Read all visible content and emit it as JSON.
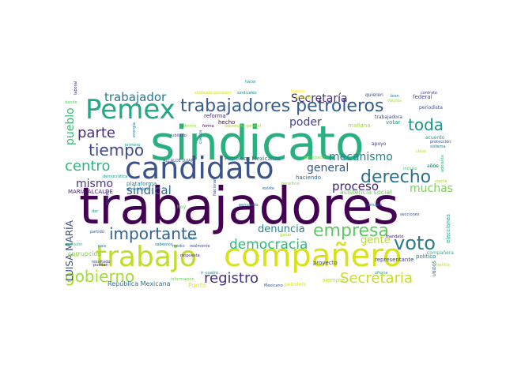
{
  "word_cloud": {
    "words": [
      {
        "text": "trabajadores",
        "color": "#440154"
      },
      {
        "text": "sindicato",
        "color": "#2ab07f"
      },
      {
        "text": "compañero",
        "color": "#d8e219"
      },
      {
        "text": "trabajo",
        "color": "#bddf26"
      },
      {
        "text": "candidato",
        "color": "#3b528b"
      },
      {
        "text": "Pemex",
        "color": "#22a884"
      },
      {
        "text": "trabajadores petroleros",
        "color": "#365c8d"
      },
      {
        "text": "registro",
        "color": "#46327e"
      },
      {
        "text": "empresa",
        "color": "#5ec962"
      },
      {
        "text": "importante",
        "color": "#33638d"
      },
      {
        "text": "derecho",
        "color": "#2c728e"
      },
      {
        "text": "gobierno",
        "color": "#a5db36"
      },
      {
        "text": "voto",
        "color": "#287d8e"
      },
      {
        "text": "Secretaria",
        "color": "#c2df23"
      },
      {
        "text": "democracia",
        "color": "#35b779"
      },
      {
        "text": "toda",
        "color": "#21918c"
      },
      {
        "text": "tiempo",
        "color": "#3e4989"
      },
      {
        "text": "centro",
        "color": "#2fb47c"
      },
      {
        "text": "parte",
        "color": "#472d7b"
      },
      {
        "text": "trabajador",
        "color": "#2a788e"
      },
      {
        "text": "Secretaría",
        "color": "#482878"
      },
      {
        "text": "sindical",
        "color": "#31688e"
      },
      {
        "text": "muchas",
        "color": "#7ad151"
      },
      {
        "text": "proceso",
        "color": "#482173"
      },
      {
        "text": "mecanismo",
        "color": "#26828e"
      },
      {
        "text": "general",
        "color": "#38588c"
      },
      {
        "text": "poder",
        "color": "#414487"
      },
      {
        "text": "pueblo",
        "color": "#3aba76"
      },
      {
        "text": "mismo",
        "color": "#443983"
      },
      {
        "text": "denuncia",
        "color": "#25848e"
      },
      {
        "text": "gente",
        "color": "#b5de2b"
      },
      {
        "text": "LUISA MARÍA",
        "color": "#3b528b"
      },
      {
        "text": "República Mexicana",
        "color": "#2c728e"
      },
      {
        "text": "Punto",
        "color": "#e5e419"
      },
      {
        "text": "asistencia social",
        "color": "#6ccd5a"
      },
      {
        "text": "plataforma",
        "color": "#23898e"
      },
      {
        "text": "MARÍA ALCALDE",
        "color": "#481f70"
      },
      {
        "text": "corrupción",
        "color": "#7fd34e"
      },
      {
        "text": "Petróleos Mexicanos",
        "color": "#2c728e"
      },
      {
        "text": "reforma",
        "color": "#472c7a"
      },
      {
        "text": "mañana",
        "color": "#9bd93c"
      },
      {
        "text": "votar",
        "color": "#1f9e89"
      },
      {
        "text": "federal",
        "color": "#3e4a89"
      },
      {
        "text": "elecciones",
        "color": "#20a386"
      },
      {
        "text": "político",
        "color": "#26818e"
      },
      {
        "text": "representante",
        "color": "#414487"
      },
      {
        "text": "siempre",
        "color": "#b8de29"
      },
      {
        "text": "proyecto",
        "color": "#3e4989"
      },
      {
        "text": "haciendo",
        "color": "#31688e"
      },
      {
        "text": "hecho",
        "color": "#440154"
      },
      {
        "text": "año",
        "color": "#6ece58"
      },
      {
        "text": "años",
        "color": "#2a778e"
      },
      {
        "text": "acuerdo",
        "color": "#20a486"
      },
      {
        "text": "apoyo",
        "color": "#443a83"
      },
      {
        "text": "periodista",
        "color": "#3b528b"
      },
      {
        "text": "compañera",
        "color": "#2ab07f"
      },
      {
        "text": "trabajadora",
        "color": "#3e4989"
      },
      {
        "text": "quieren",
        "color": "#404688"
      },
      {
        "text": "ALCALDE LUJÁN",
        "color": "#38588c"
      },
      {
        "text": "jubilado",
        "color": "#3f4788"
      },
      {
        "text": "sindicato petrolero",
        "color": "#d2e21b"
      },
      {
        "text": "sindicales",
        "color": "#228b8d"
      },
      {
        "text": "Secretario general",
        "color": "#a8db34"
      },
      {
        "text": "forma",
        "color": "#440154"
      },
      {
        "text": "dentro",
        "color": "#95d840"
      },
      {
        "text": "primero",
        "color": "#1fa088"
      },
      {
        "text": "energía",
        "color": "#2a778e"
      },
      {
        "text": "democrática",
        "color": "#1f9a8a"
      },
      {
        "text": "revocación",
        "color": "#2d708e"
      },
      {
        "text": "hoy",
        "color": "#5ec962"
      },
      {
        "text": "Nacional",
        "color": "#3a548c"
      },
      {
        "text": "cuenta",
        "color": "#2d718e"
      },
      {
        "text": "ganar",
        "color": "#a0da39"
      },
      {
        "text": "pensando",
        "color": "#2c738e"
      },
      {
        "text": "ejemplo",
        "color": "#3e4a89"
      },
      {
        "text": "partido",
        "color": "#39568c"
      },
      {
        "text": "resultado",
        "color": "#404588"
      },
      {
        "text": "puedan",
        "color": "#482576"
      },
      {
        "text": "dar",
        "color": "#21908d"
      },
      {
        "text": "medio",
        "color": "#2e6f8e"
      },
      {
        "text": "realmente",
        "color": "#3f4889"
      },
      {
        "text": "ir",
        "color": "#34608d"
      },
      {
        "text": "cuatro",
        "color": "#26828e"
      },
      {
        "text": "información",
        "color": "#6ccd5a"
      },
      {
        "text": "trabaja",
        "color": "#fde725"
      },
      {
        "text": "existe",
        "color": "#2b748e"
      },
      {
        "text": "beneficio",
        "color": "#84d44b"
      },
      {
        "text": "corrupto",
        "color": "#39568c"
      },
      {
        "text": "secciones",
        "color": "#3b528b"
      },
      {
        "text": "mandato",
        "color": "#481a6c"
      },
      {
        "text": "oficina",
        "color": "#1f9e89"
      },
      {
        "text": "familia",
        "color": "#b2dd2d"
      },
      {
        "text": "UNIDOS",
        "color": "#34608d"
      },
      {
        "text": "adelante",
        "color": "#2db27d"
      },
      {
        "text": "incluso",
        "color": "#40bd72"
      },
      {
        "text": "sistema",
        "color": "#2c738e"
      },
      {
        "text": "protección",
        "color": "#3b528b"
      },
      {
        "text": "bien",
        "color": "#287c8e"
      },
      {
        "text": "contrato",
        "color": "#414487"
      },
      {
        "text": "valores",
        "color": "#a8db34"
      },
      {
        "text": "logrado",
        "color": "#c5e021"
      },
      {
        "text": "laboral",
        "color": "#482475"
      },
      {
        "text": "dando",
        "color": "#5ec962"
      },
      {
        "text": "niños",
        "color": "#95d840"
      },
      {
        "text": "país",
        "color": "#2c738e"
      },
      {
        "text": "comisión",
        "color": "#35b779"
      },
      {
        "text": "sabemos",
        "color": "#26818e"
      },
      {
        "text": "respuesta",
        "color": "#482878"
      },
      {
        "text": "Mexicano",
        "color": "#3b528b"
      },
      {
        "text": "petrolero",
        "color": "#d8e219"
      },
      {
        "text": "escuchado",
        "color": "#7ad151"
      },
      {
        "text": "electa",
        "color": "#a0da39"
      },
      {
        "text": "clave",
        "color": "#b5de2b"
      },
      {
        "text": "hayan",
        "color": "#2a788e"
      },
      {
        "text": "hacer",
        "color": "#21918c"
      }
    ]
  }
}
